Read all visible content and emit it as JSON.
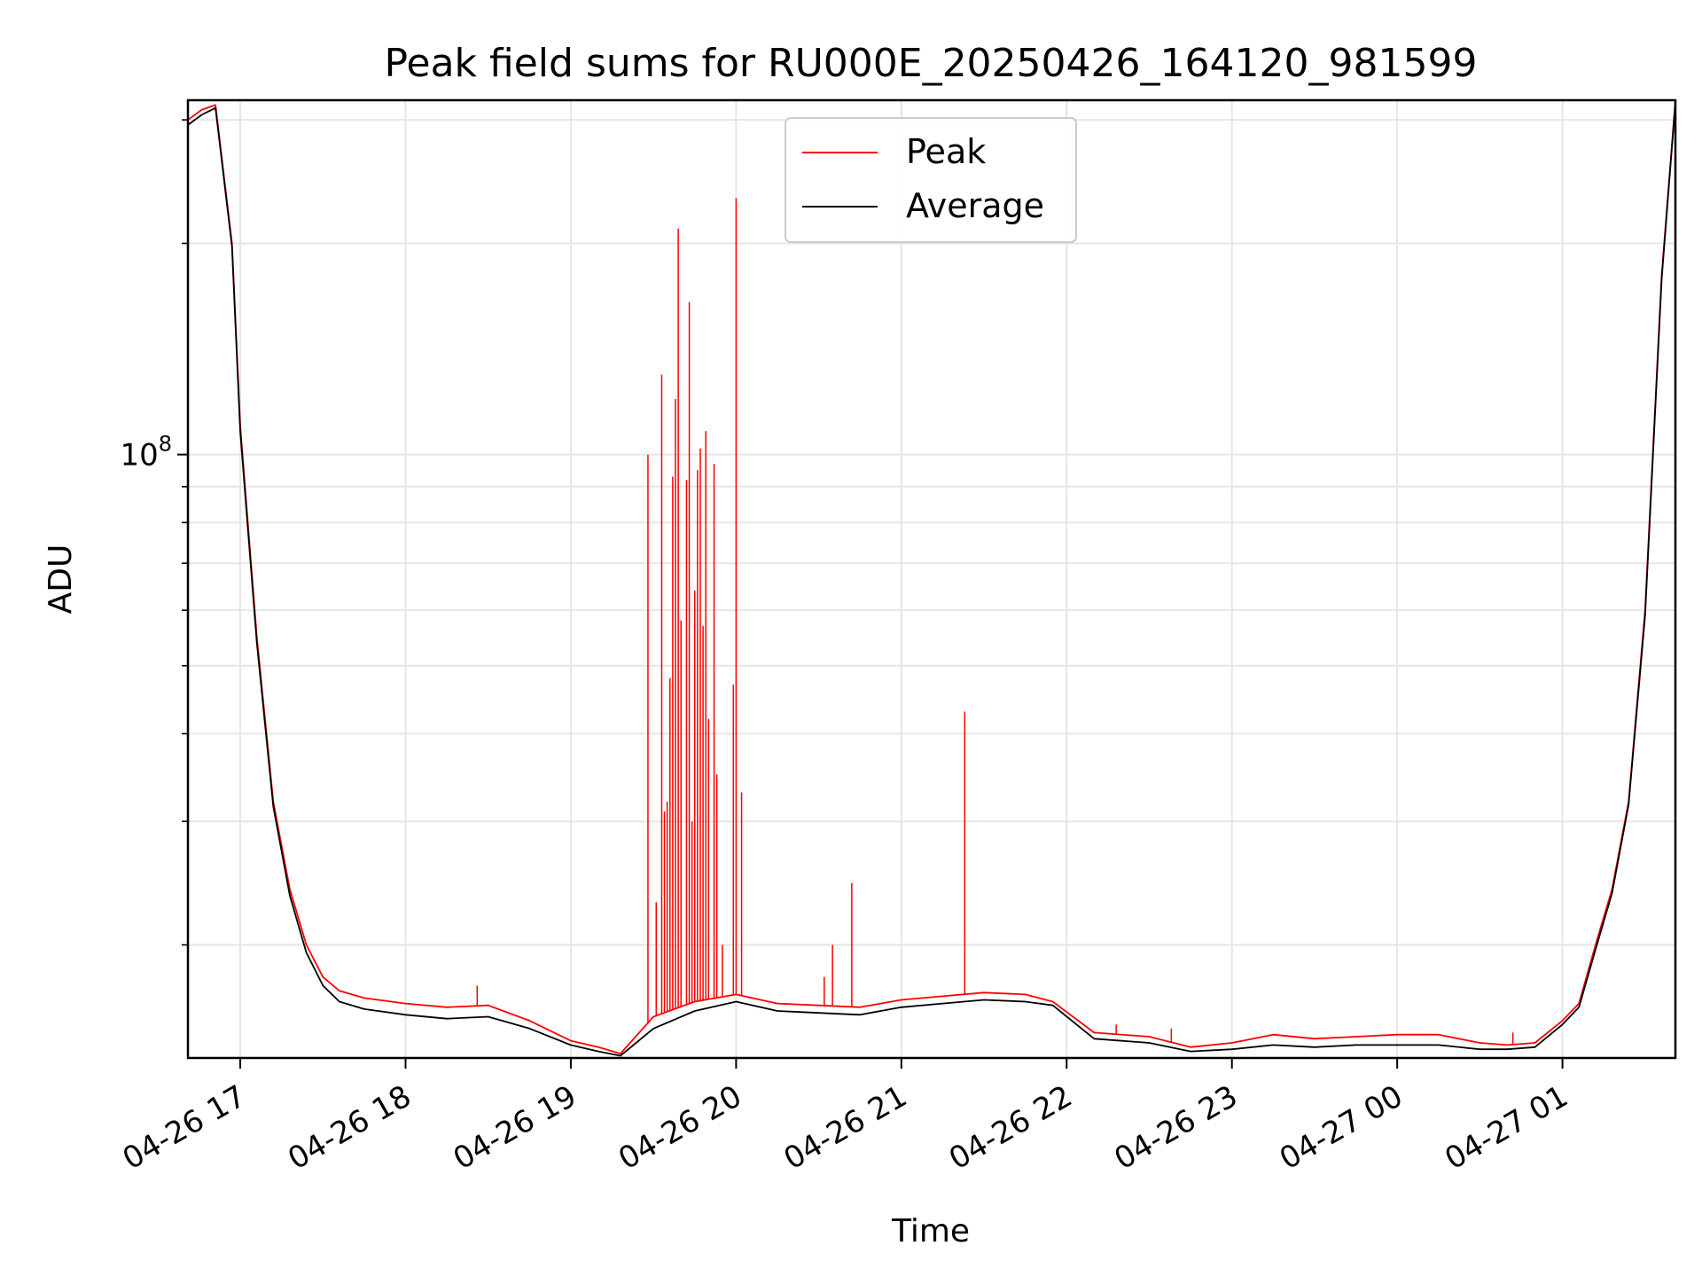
{
  "chart_data": {
    "type": "line",
    "title": "Peak field sums for RU000E_20250426_164120_981599",
    "xlabel": "Time",
    "ylabel": "ADU",
    "y_scale": "log",
    "ylim": [
      13800000,
      320000000
    ],
    "xlim": [
      "2025-04-26 16:41",
      "2025-04-27 01:41"
    ],
    "grid": true,
    "legend_position": "top-center",
    "x_tick_labels": [
      "04-26 17",
      "04-26 18",
      "04-26 19",
      "04-26 20",
      "04-26 21",
      "04-26 22",
      "04-26 23",
      "04-27 00",
      "04-27 01"
    ],
    "x_ticks": [
      "2025-04-26 17:00",
      "2025-04-26 18:00",
      "2025-04-26 19:00",
      "2025-04-26 20:00",
      "2025-04-26 21:00",
      "2025-04-26 22:00",
      "2025-04-26 23:00",
      "2025-04-27 00:00",
      "2025-04-27 01:00"
    ],
    "y_major_ticks": [
      {
        "value": 100000000,
        "label_base": "10",
        "label_exp": "8"
      }
    ],
    "y_minor_ticks": [
      20000000,
      30000000,
      40000000,
      50000000,
      60000000,
      70000000,
      80000000,
      90000000,
      200000000,
      300000000
    ],
    "series": [
      {
        "name": "Peak",
        "color": "#ff0000",
        "x": [
          "2025-04-26 16:41",
          "2025-04-26 16:46",
          "2025-04-26 16:51",
          "2025-04-26 16:57",
          "2025-04-26 17:00",
          "2025-04-26 17:06",
          "2025-04-26 17:12",
          "2025-04-26 17:18",
          "2025-04-26 17:24",
          "2025-04-26 17:30",
          "2025-04-26 17:36",
          "2025-04-26 17:45",
          "2025-04-26 18:00",
          "2025-04-26 18:15",
          "2025-04-26 18:30",
          "2025-04-26 18:45",
          "2025-04-26 19:00",
          "2025-04-26 19:10",
          "2025-04-26 19:18",
          "2025-04-26 19:30",
          "2025-04-26 19:45",
          "2025-04-26 20:00",
          "2025-04-26 20:15",
          "2025-04-26 20:30",
          "2025-04-26 20:45",
          "2025-04-26 21:00",
          "2025-04-26 21:15",
          "2025-04-26 21:30",
          "2025-04-26 21:45",
          "2025-04-26 21:55",
          "2025-04-26 22:10",
          "2025-04-26 22:30",
          "2025-04-26 22:45",
          "2025-04-26 23:00",
          "2025-04-26 23:15",
          "2025-04-26 23:30",
          "2025-04-26 23:45",
          "2025-04-27 00:00",
          "2025-04-27 00:15",
          "2025-04-27 00:30",
          "2025-04-27 00:40",
          "2025-04-27 00:50",
          "2025-04-27 01:00",
          "2025-04-27 01:06",
          "2025-04-27 01:12",
          "2025-04-27 01:18",
          "2025-04-27 01:24",
          "2025-04-27 01:30",
          "2025-04-27 01:36",
          "2025-04-27 01:41"
        ],
        "values": [
          300000000,
          310000000,
          315000000,
          200000000,
          110000000,
          55000000,
          32000000,
          24000000,
          20000000,
          18000000,
          17200000,
          16800000,
          16500000,
          16300000,
          16400000,
          15600000,
          14600000,
          14300000,
          14000000,
          15800000,
          16600000,
          17000000,
          16500000,
          16400000,
          16300000,
          16700000,
          16900000,
          17100000,
          17000000,
          16600000,
          15000000,
          14800000,
          14300000,
          14500000,
          14900000,
          14700000,
          14800000,
          14900000,
          14900000,
          14500000,
          14400000,
          14500000,
          15600000,
          16500000,
          20000000,
          24000000,
          32000000,
          60000000,
          180000000,
          320000000
        ],
        "spikes": [
          {
            "x": "2025-04-26 18:26",
            "value": 17500000
          },
          {
            "x": "2025-04-26 19:28",
            "value": 100000000
          },
          {
            "x": "2025-04-26 19:31",
            "value": 23000000
          },
          {
            "x": "2025-04-26 19:33",
            "value": 130000000
          },
          {
            "x": "2025-04-26 19:34",
            "value": 31000000
          },
          {
            "x": "2025-04-26 19:35",
            "value": 32000000
          },
          {
            "x": "2025-04-26 19:36",
            "value": 48000000
          },
          {
            "x": "2025-04-26 19:37",
            "value": 93000000
          },
          {
            "x": "2025-04-26 19:38",
            "value": 120000000
          },
          {
            "x": "2025-04-26 19:39",
            "value": 210000000
          },
          {
            "x": "2025-04-26 19:40",
            "value": 58000000
          },
          {
            "x": "2025-04-26 19:42",
            "value": 92000000
          },
          {
            "x": "2025-04-26 19:43",
            "value": 165000000
          },
          {
            "x": "2025-04-26 19:44",
            "value": 30000000
          },
          {
            "x": "2025-04-26 19:45",
            "value": 64000000
          },
          {
            "x": "2025-04-26 19:46",
            "value": 95000000
          },
          {
            "x": "2025-04-26 19:47",
            "value": 102000000
          },
          {
            "x": "2025-04-26 19:48",
            "value": 57000000
          },
          {
            "x": "2025-04-26 19:49",
            "value": 108000000
          },
          {
            "x": "2025-04-26 19:50",
            "value": 42000000
          },
          {
            "x": "2025-04-26 19:52",
            "value": 97000000
          },
          {
            "x": "2025-04-26 19:53",
            "value": 35000000
          },
          {
            "x": "2025-04-26 19:55",
            "value": 20000000
          },
          {
            "x": "2025-04-26 19:59",
            "value": 47000000
          },
          {
            "x": "2025-04-26 20:00",
            "value": 232000000
          },
          {
            "x": "2025-04-26 20:02",
            "value": 33000000
          },
          {
            "x": "2025-04-26 20:32",
            "value": 18000000
          },
          {
            "x": "2025-04-26 20:35",
            "value": 20000000
          },
          {
            "x": "2025-04-26 20:42",
            "value": 24500000
          },
          {
            "x": "2025-04-26 21:23",
            "value": 43000000
          },
          {
            "x": "2025-04-26 22:18",
            "value": 15400000
          },
          {
            "x": "2025-04-26 22:38",
            "value": 15200000
          },
          {
            "x": "2025-04-27 00:42",
            "value": 15000000
          }
        ]
      },
      {
        "name": "Average",
        "color": "#000000",
        "x": [
          "2025-04-26 16:41",
          "2025-04-26 16:46",
          "2025-04-26 16:51",
          "2025-04-26 16:57",
          "2025-04-26 17:00",
          "2025-04-26 17:06",
          "2025-04-26 17:12",
          "2025-04-26 17:18",
          "2025-04-26 17:24",
          "2025-04-26 17:30",
          "2025-04-26 17:36",
          "2025-04-26 17:45",
          "2025-04-26 18:00",
          "2025-04-26 18:15",
          "2025-04-26 18:30",
          "2025-04-26 18:45",
          "2025-04-26 19:00",
          "2025-04-26 19:10",
          "2025-04-26 19:18",
          "2025-04-26 19:30",
          "2025-04-26 19:45",
          "2025-04-26 20:00",
          "2025-04-26 20:15",
          "2025-04-26 20:30",
          "2025-04-26 20:45",
          "2025-04-26 21:00",
          "2025-04-26 21:15",
          "2025-04-26 21:30",
          "2025-04-26 21:45",
          "2025-04-26 21:55",
          "2025-04-26 22:10",
          "2025-04-26 22:30",
          "2025-04-26 22:45",
          "2025-04-26 23:00",
          "2025-04-26 23:15",
          "2025-04-26 23:30",
          "2025-04-26 23:45",
          "2025-04-27 00:00",
          "2025-04-27 00:15",
          "2025-04-27 00:30",
          "2025-04-27 00:40",
          "2025-04-27 00:50",
          "2025-04-27 01:00",
          "2025-04-27 01:06",
          "2025-04-27 01:12",
          "2025-04-27 01:18",
          "2025-04-27 01:24",
          "2025-04-27 01:30",
          "2025-04-27 01:36",
          "2025-04-27 01:41"
        ],
        "values": [
          295000000,
          305000000,
          312000000,
          198000000,
          108000000,
          54000000,
          31500000,
          23500000,
          19500000,
          17500000,
          16600000,
          16200000,
          15900000,
          15700000,
          15800000,
          15200000,
          14400000,
          14100000,
          13900000,
          15200000,
          16100000,
          16600000,
          16100000,
          16000000,
          15900000,
          16300000,
          16500000,
          16700000,
          16600000,
          16400000,
          14700000,
          14500000,
          14100000,
          14200000,
          14400000,
          14300000,
          14400000,
          14400000,
          14400000,
          14200000,
          14200000,
          14300000,
          15400000,
          16300000,
          19700000,
          23700000,
          31700000,
          59000000,
          178000000,
          318000000
        ]
      }
    ]
  }
}
